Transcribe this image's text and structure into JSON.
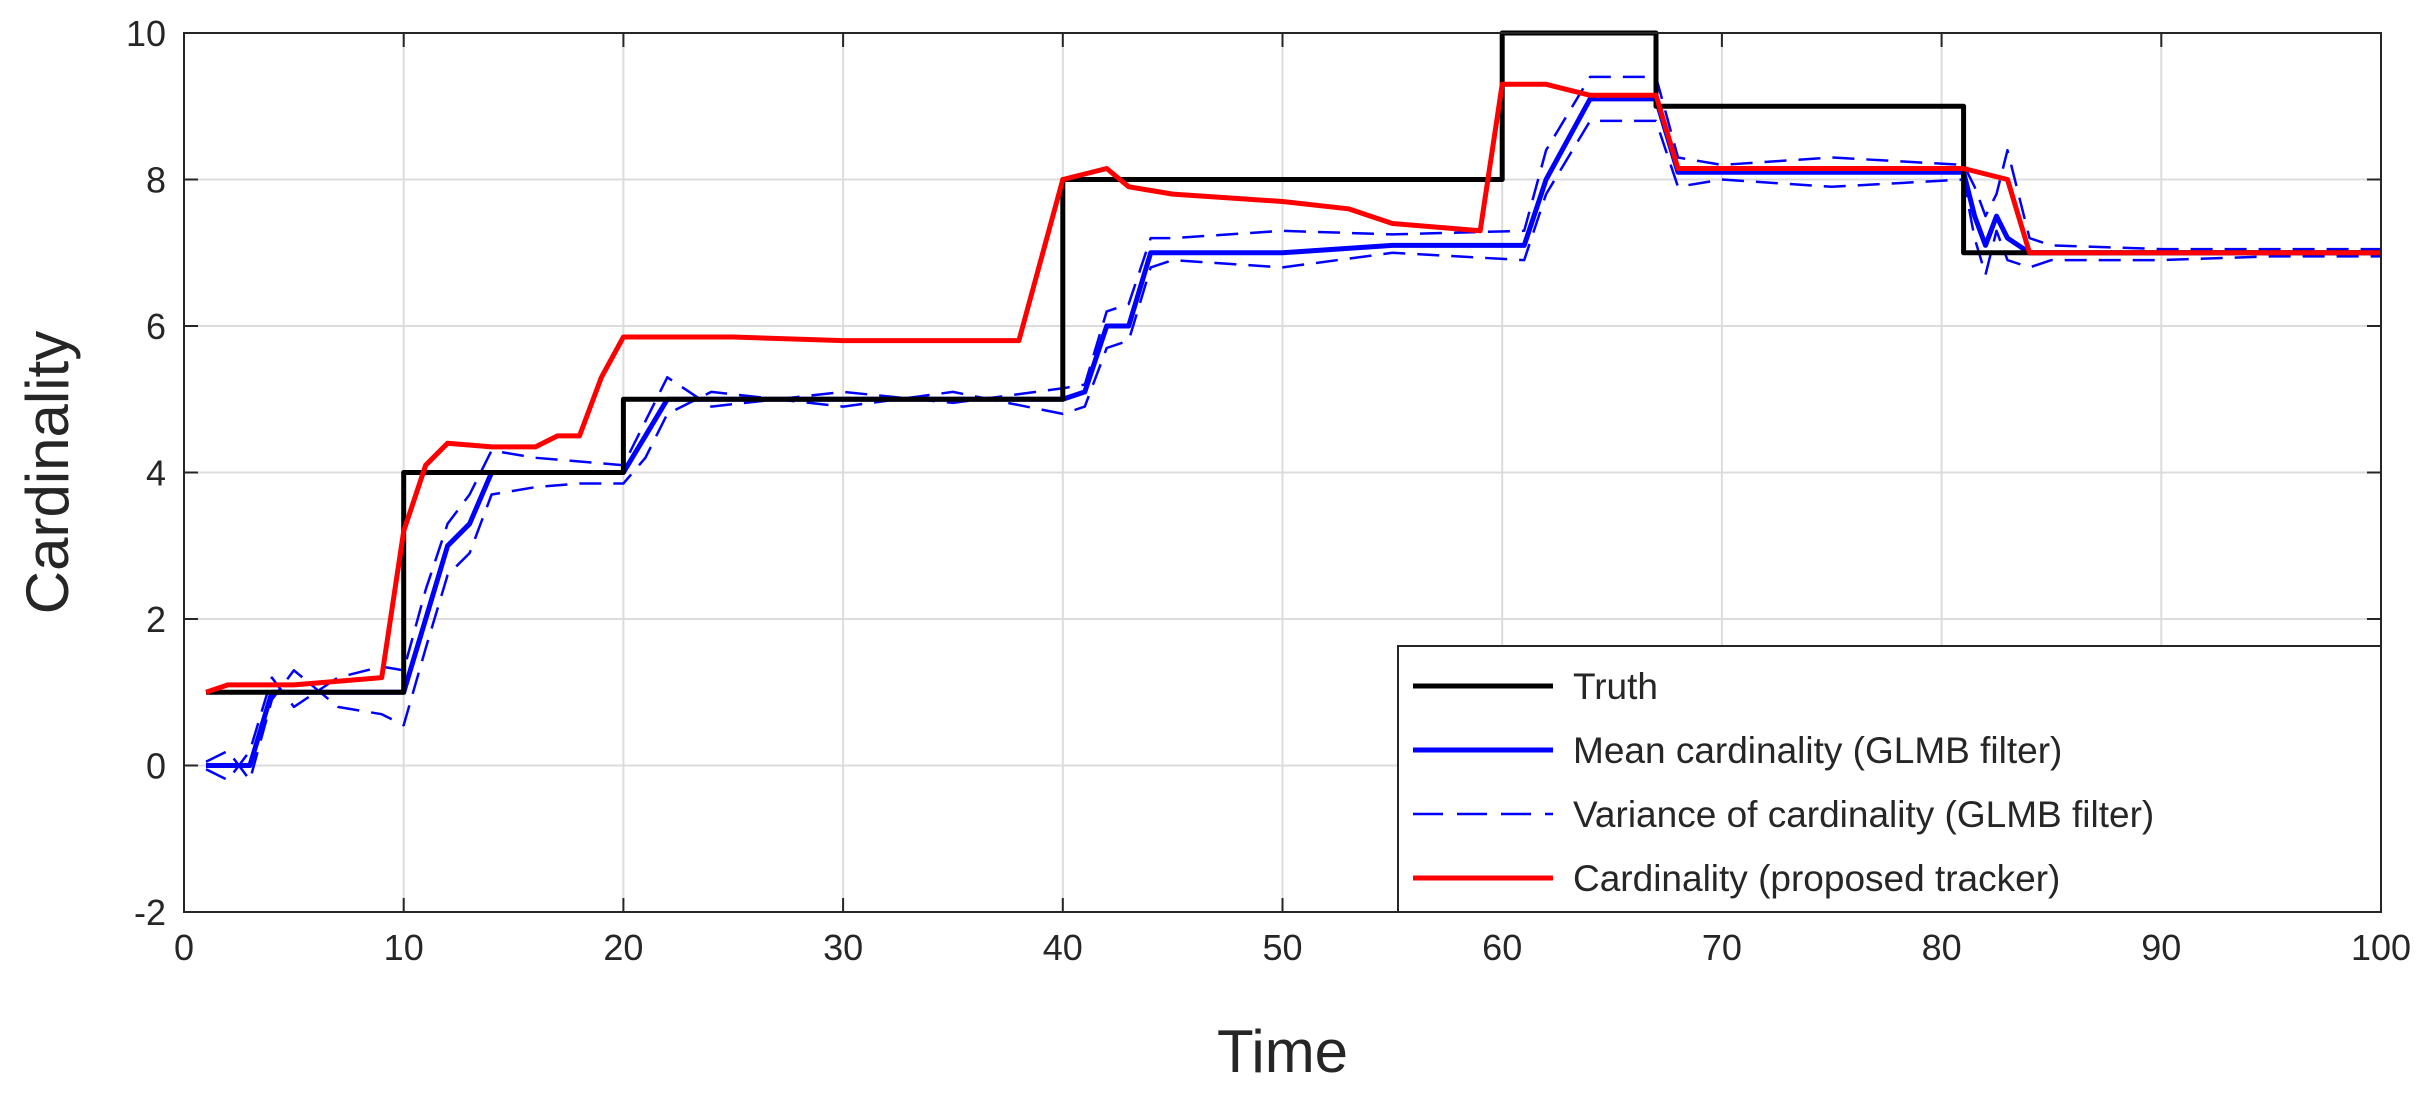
{
  "chart_data": {
    "type": "line",
    "xlabel": "Time",
    "ylabel": "Cardinality",
    "xlim": [
      0,
      100
    ],
    "ylim": [
      -2,
      10
    ],
    "xticks": [
      0,
      10,
      20,
      30,
      40,
      50,
      60,
      70,
      80,
      90,
      100
    ],
    "yticks": [
      -2,
      0,
      2,
      4,
      6,
      8,
      10
    ],
    "grid": true,
    "legend_position": "bottom-right",
    "series": [
      {
        "name": "Truth",
        "color": "#000000",
        "style": "solid",
        "x": [
          1,
          10,
          10,
          20,
          20,
          40,
          40,
          60,
          60,
          67,
          67,
          81,
          81,
          100
        ],
        "y": [
          1,
          1,
          4,
          4,
          5,
          5,
          8,
          8,
          10,
          10,
          9,
          9,
          7,
          7
        ]
      },
      {
        "name": "Mean cardinality (GLMB filter)",
        "color": "#0000ff",
        "style": "solid",
        "x": [
          1,
          2,
          3,
          4,
          5,
          7,
          9,
          10,
          11,
          12,
          13,
          14,
          16,
          18,
          20,
          21,
          22,
          24,
          30,
          35,
          40,
          41,
          42,
          43,
          44,
          45,
          50,
          55,
          61,
          62,
          64,
          67,
          68,
          70,
          75,
          81,
          81.5,
          82,
          82.5,
          83,
          84,
          85,
          90,
          95,
          100
        ],
        "y": [
          0,
          0,
          0,
          1,
          1,
          1,
          1,
          1,
          2,
          3,
          3.3,
          4,
          4,
          4,
          4,
          4.5,
          5,
          5,
          5,
          5,
          5,
          5.1,
          6,
          6,
          7,
          7,
          7,
          7.1,
          7.1,
          8,
          9.1,
          9.1,
          8.1,
          8.1,
          8.1,
          8.1,
          7.5,
          7.1,
          7.5,
          7.2,
          7,
          7,
          7,
          7,
          7
        ]
      },
      {
        "name": "Variance of cardinality (GLMB filter)",
        "color": "#0000ff",
        "style": "dashed",
        "x": [
          1,
          2,
          3,
          4,
          5,
          7,
          9,
          10,
          11,
          12,
          13,
          14,
          16,
          18,
          20,
          21,
          22,
          24,
          30,
          35,
          40,
          41,
          42,
          43,
          44,
          45,
          50,
          55,
          61,
          62,
          64,
          67,
          68,
          70,
          75,
          81,
          81.5,
          82,
          82.5,
          83,
          84,
          85,
          90,
          95,
          100
        ],
        "y": [
          0.05,
          0.2,
          -0.2,
          0.9,
          1.3,
          0.8,
          0.7,
          0.55,
          1.6,
          2.6,
          2.9,
          3.7,
          3.8,
          3.85,
          3.85,
          4.2,
          4.8,
          5.1,
          4.9,
          5.1,
          4.8,
          4.9,
          5.7,
          5.8,
          6.8,
          6.9,
          6.8,
          7,
          6.9,
          7.8,
          8.8,
          8.8,
          7.9,
          8,
          7.9,
          8,
          7.2,
          6.7,
          7.3,
          6.9,
          6.8,
          6.9,
          6.9,
          6.95,
          6.95
        ]
      },
      {
        "name": "Variance of cardinality (GLMB filter)",
        "color": "#0000ff",
        "style": "dashed",
        "x": [
          1,
          2,
          3,
          4,
          5,
          7,
          9,
          10,
          11,
          12,
          13,
          14,
          16,
          18,
          20,
          21,
          22,
          24,
          30,
          35,
          40,
          41,
          42,
          43,
          44,
          45,
          50,
          55,
          61,
          62,
          64,
          67,
          68,
          70,
          75,
          81,
          81.5,
          82,
          82.5,
          83,
          84,
          85,
          90,
          95,
          100
        ],
        "y": [
          -0.05,
          -0.2,
          0.2,
          1.2,
          0.8,
          1.2,
          1.35,
          1.3,
          2.4,
          3.3,
          3.7,
          4.3,
          4.2,
          4.15,
          4.1,
          4.7,
          5.3,
          4.9,
          5.1,
          4.95,
          5.15,
          5.2,
          6.2,
          6.3,
          7.2,
          7.2,
          7.3,
          7.25,
          7.3,
          8.4,
          9.4,
          9.4,
          8.3,
          8.2,
          8.3,
          8.2,
          7.9,
          7.5,
          7.8,
          8.4,
          7.2,
          7.1,
          7.05,
          7.05,
          7.05
        ]
      },
      {
        "name": "Cardinality (proposed tracker)",
        "color": "#ff0000",
        "style": "solid",
        "x": [
          1,
          2,
          5,
          9,
          10,
          11,
          12,
          14,
          16,
          17,
          18,
          19,
          20,
          25,
          30,
          38,
          40,
          42,
          43,
          45,
          50,
          53,
          55,
          59,
          60,
          62,
          64,
          67,
          68,
          70,
          75,
          81,
          83,
          84,
          90,
          100
        ],
        "y": [
          1,
          1.1,
          1.1,
          1.2,
          3.2,
          4.1,
          4.4,
          4.35,
          4.35,
          4.5,
          4.5,
          5.3,
          5.85,
          5.85,
          5.8,
          5.8,
          8,
          8.15,
          7.9,
          7.8,
          7.7,
          7.6,
          7.4,
          7.3,
          9.3,
          9.3,
          9.15,
          9.15,
          8.15,
          8.15,
          8.15,
          8.15,
          8,
          7,
          7,
          7
        ]
      }
    ]
  }
}
